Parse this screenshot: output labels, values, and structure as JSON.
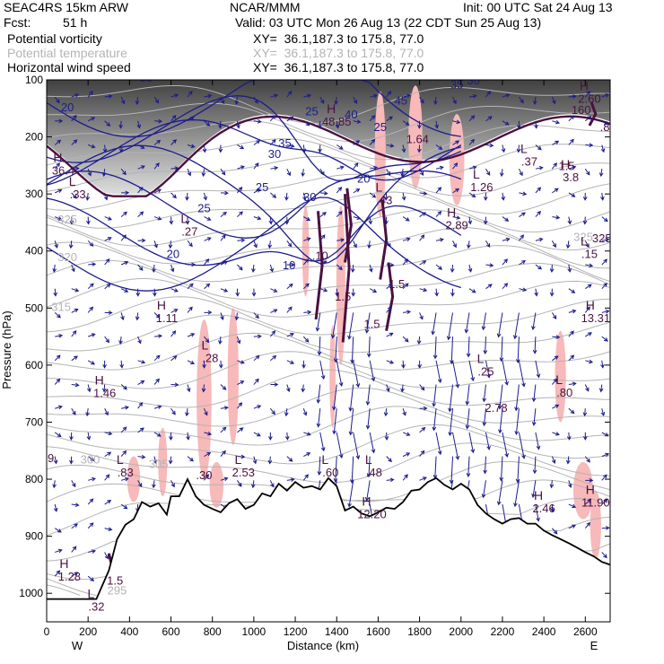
{
  "header": {
    "model": "SEAC4RS 15km ARW",
    "center": "NCAR/MMM",
    "init": "Init: 00 UTC Sat 24 Aug 13",
    "fcst_label": "Fcst:",
    "fcst_value": "51 h",
    "valid": "Valid: 03 UTC Mon 26 Aug 13 (22 CDT Sun 25 Aug 13)",
    "fields": [
      {
        "name": "Potential vorticity",
        "xy": "XY=  36.1,187.3 to 175.8, 77.0"
      },
      {
        "name": "Potential temperature",
        "xy": "XY=  36.1,187.3 to 175.8, 77.0"
      },
      {
        "name": "Horizontal wind speed",
        "xy": "XY=  36.1,187.3 to 175.8, 77.0"
      }
    ]
  },
  "colors": {
    "pv": "#4a1140",
    "theta": "#b4b4b4",
    "wind": "#1c1c8c",
    "shade": "#f7b9b9",
    "terrain": "#000000"
  },
  "chart_data": {
    "type": "cross-section",
    "xlabel": "Distance (km)",
    "ylabel": "Pressure (hPa)",
    "xlim": [
      0,
      2720
    ],
    "ylim": [
      1050,
      100
    ],
    "x_ticks": [
      0,
      200,
      400,
      600,
      800,
      1000,
      1200,
      1400,
      1600,
      1800,
      2000,
      2200,
      2400,
      2600
    ],
    "y_ticks": [
      100,
      200,
      300,
      400,
      500,
      600,
      700,
      800,
      900,
      1000
    ],
    "end_labels": {
      "left": "W",
      "right": "E"
    },
    "terrain": [
      [
        0,
        1010
      ],
      [
        240,
        1010
      ],
      [
        300,
        960
      ],
      [
        340,
        905
      ],
      [
        380,
        880
      ],
      [
        420,
        870
      ],
      [
        460,
        840
      ],
      [
        500,
        848
      ],
      [
        540,
        842
      ],
      [
        580,
        862
      ],
      [
        600,
        830
      ],
      [
        640,
        830
      ],
      [
        680,
        800
      ],
      [
        720,
        830
      ],
      [
        760,
        845
      ],
      [
        800,
        852
      ],
      [
        840,
        858
      ],
      [
        880,
        842
      ],
      [
        920,
        835
      ],
      [
        960,
        852
      ],
      [
        1000,
        845
      ],
      [
        1040,
        825
      ],
      [
        1080,
        830
      ],
      [
        1120,
        808
      ],
      [
        1160,
        820
      ],
      [
        1200,
        805
      ],
      [
        1240,
        815
      ],
      [
        1280,
        812
      ],
      [
        1320,
        818
      ],
      [
        1360,
        798
      ],
      [
        1400,
        812
      ],
      [
        1440,
        855
      ],
      [
        1480,
        848
      ],
      [
        1520,
        860
      ],
      [
        1560,
        865
      ],
      [
        1600,
        858
      ],
      [
        1640,
        850
      ],
      [
        1680,
        852
      ],
      [
        1720,
        840
      ],
      [
        1760,
        820
      ],
      [
        1800,
        818
      ],
      [
        1840,
        805
      ],
      [
        1880,
        798
      ],
      [
        1920,
        810
      ],
      [
        1960,
        818
      ],
      [
        2000,
        808
      ],
      [
        2040,
        818
      ],
      [
        2080,
        845
      ],
      [
        2120,
        860
      ],
      [
        2160,
        870
      ],
      [
        2200,
        878
      ],
      [
        2240,
        870
      ],
      [
        2280,
        868
      ],
      [
        2320,
        878
      ],
      [
        2360,
        878
      ],
      [
        2400,
        890
      ],
      [
        2440,
        898
      ],
      [
        2480,
        905
      ],
      [
        2520,
        912
      ],
      [
        2560,
        920
      ],
      [
        2600,
        928
      ],
      [
        2640,
        935
      ],
      [
        2680,
        945
      ],
      [
        2720,
        950
      ]
    ],
    "theta_labels": [
      {
        "x": 340,
        "p": 1002,
        "label": "295"
      },
      {
        "x": 210,
        "p": 772,
        "label": "300"
      },
      {
        "x": 540,
        "p": 780,
        "label": "305"
      },
      {
        "x": 70,
        "p": 505,
        "label": "315"
      },
      {
        "x": 100,
        "p": 418,
        "label": "320"
      },
      {
        "x": 100,
        "p": 352,
        "label": "325"
      },
      {
        "x": 2590,
        "p": 382,
        "label": "325"
      }
    ],
    "wind_labels": [
      {
        "x": 100,
        "p": 155,
        "label": "20"
      },
      {
        "x": 480,
        "p": 103,
        "label": "35"
      },
      {
        "x": 1280,
        "p": 162,
        "label": "25"
      },
      {
        "x": 1470,
        "p": 168,
        "label": "40"
      },
      {
        "x": 1150,
        "p": 218,
        "label": "35"
      },
      {
        "x": 1610,
        "p": 190,
        "label": "25"
      },
      {
        "x": 1980,
        "p": 115,
        "label": "35"
      },
      {
        "x": 2060,
        "p": 108,
        "label": "30"
      },
      {
        "x": 1710,
        "p": 143,
        "label": "45"
      },
      {
        "x": 1100,
        "p": 237,
        "label": "30"
      },
      {
        "x": 1040,
        "p": 295,
        "label": "25"
      },
      {
        "x": 1270,
        "p": 312,
        "label": "30"
      },
      {
        "x": 1530,
        "p": 280,
        "label": "20"
      },
      {
        "x": 760,
        "p": 332,
        "label": "25"
      },
      {
        "x": 610,
        "p": 412,
        "label": "20"
      },
      {
        "x": 1170,
        "p": 432,
        "label": "10"
      }
    ],
    "extrema": [
      {
        "x": 2620,
        "p": 140,
        "type": "H",
        "value": "2.60"
      },
      {
        "x": 2580,
        "p": 160,
        "type": "",
        "value": "160"
      },
      {
        "x": 2710,
        "p": 190,
        "type": "",
        "value": ".81"
      },
      {
        "x": 2510,
        "p": 258,
        "type": "",
        "value": "1.5"
      },
      {
        "x": 2530,
        "p": 278,
        "type": "H",
        "value": "3.8"
      },
      {
        "x": 2330,
        "p": 250,
        "type": "L",
        "value": ".37"
      },
      {
        "x": 2100,
        "p": 295,
        "type": "L",
        "value": "1.26"
      },
      {
        "x": 1790,
        "p": 211,
        "type": "",
        "value": "1.64"
      },
      {
        "x": 1400,
        "p": 180,
        "type": "H",
        "value": "48.85"
      },
      {
        "x": 80,
        "p": 266,
        "type": "H",
        "value": "36.4"
      },
      {
        "x": 150,
        "p": 308,
        "type": "L",
        "value": ".33"
      },
      {
        "x": 690,
        "p": 373,
        "type": "L",
        "value": ".27"
      },
      {
        "x": 1630,
        "p": 318,
        "type": "L",
        "value": ".43"
      },
      {
        "x": 1980,
        "p": 362,
        "type": "H",
        "value": "2.89"
      },
      {
        "x": 1320,
        "p": 415,
        "type": "",
        "value": ".10"
      },
      {
        "x": 1430,
        "p": 487,
        "type": "",
        "value": "1.5"
      },
      {
        "x": 1570,
        "p": 535,
        "type": "",
        "value": "1.5"
      },
      {
        "x": 1690,
        "p": 465,
        "type": "",
        "value": "1.5"
      },
      {
        "x": 580,
        "p": 525,
        "type": "H",
        "value": "1.11"
      },
      {
        "x": 790,
        "p": 595,
        "type": "L",
        "value": ".28"
      },
      {
        "x": 280,
        "p": 656,
        "type": "H",
        "value": "1.46"
      },
      {
        "x": 2500,
        "p": 655,
        "type": "L",
        "value": ".80"
      },
      {
        "x": 2120,
        "p": 618,
        "type": "L",
        "value": ".25"
      },
      {
        "x": 2170,
        "p": 682,
        "type": "",
        "value": "2.78"
      },
      {
        "x": 2620,
        "p": 412,
        "type": "L",
        "value": ".15"
      },
      {
        "x": 2650,
        "p": 525,
        "type": "H",
        "value": "13.31"
      },
      {
        "x": 2680,
        "p": 385,
        "type": "",
        "value": "325"
      },
      {
        "x": 380,
        "p": 795,
        "type": "L",
        "value": ".83"
      },
      {
        "x": 760,
        "p": 800,
        "type": "",
        "value": ".30"
      },
      {
        "x": 950,
        "p": 795,
        "type": "L",
        "value": "2.53"
      },
      {
        "x": 1370,
        "p": 795,
        "type": "L",
        "value": ".60"
      },
      {
        "x": 1580,
        "p": 795,
        "type": "L",
        "value": ".48"
      },
      {
        "x": 1570,
        "p": 868,
        "type": "H",
        "value": "12.20"
      },
      {
        "x": 2400,
        "p": 858,
        "type": "H",
        "value": "2.46"
      },
      {
        "x": 2650,
        "p": 848,
        "type": "H",
        "value": "11.90"
      },
      {
        "x": 110,
        "p": 978,
        "type": "H",
        "value": "1.28"
      },
      {
        "x": 330,
        "p": 985,
        "type": "",
        "value": "1.5"
      },
      {
        "x": 240,
        "p": 1030,
        "type": "L",
        "value": ".32"
      }
    ],
    "left_edge_label": {
      "x": 20,
      "p": 770,
      "label": "9"
    }
  }
}
